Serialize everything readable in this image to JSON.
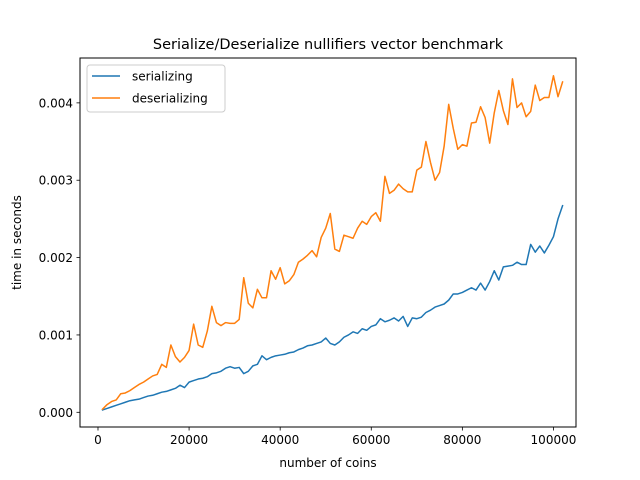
{
  "chart_data": {
    "type": "line",
    "title": "Serialize/Deserialize nullifiers vector benchmark",
    "xlabel": "number of coins",
    "ylabel": "time in seconds",
    "xlim": [
      -3950,
      104950
    ],
    "ylim": [
      -0.00019,
      0.00458
    ],
    "xticks": [
      0,
      20000,
      40000,
      60000,
      80000,
      100000
    ],
    "xtick_labels": [
      "0",
      "20000",
      "40000",
      "60000",
      "80000",
      "100000"
    ],
    "yticks": [
      0,
      0.001,
      0.002,
      0.003,
      0.004
    ],
    "ytick_labels": [
      "0.000",
      "0.001",
      "0.002",
      "0.003",
      "0.004"
    ],
    "grid": false,
    "legend": "upper left",
    "x_start": 1000,
    "x_step": 1000,
    "series": [
      {
        "name": "serializing",
        "color": "#1f77b4",
        "values": [
          3e-05,
          5e-05,
          7e-05,
          9e-05,
          0.00011,
          0.00013,
          0.00015,
          0.00016,
          0.00017,
          0.00019,
          0.00021,
          0.00022,
          0.00024,
          0.00026,
          0.00027,
          0.00029,
          0.00031,
          0.00035,
          0.00032,
          0.00039,
          0.00041,
          0.00043,
          0.00044,
          0.00046,
          0.0005,
          0.00051,
          0.00053,
          0.00057,
          0.00059,
          0.00057,
          0.00058,
          0.0005,
          0.00053,
          0.0006,
          0.00062,
          0.00073,
          0.00068,
          0.00071,
          0.00073,
          0.00074,
          0.00075,
          0.00077,
          0.00078,
          0.00081,
          0.00083,
          0.00086,
          0.00087,
          0.00089,
          0.00091,
          0.00096,
          0.00089,
          0.00087,
          0.00091,
          0.00097,
          0.001,
          0.00104,
          0.00102,
          0.00108,
          0.00106,
          0.00111,
          0.00113,
          0.00121,
          0.00117,
          0.00119,
          0.00122,
          0.00118,
          0.00124,
          0.00111,
          0.00122,
          0.00121,
          0.00123,
          0.00129,
          0.00132,
          0.00136,
          0.00138,
          0.0014,
          0.00145,
          0.00153,
          0.00153,
          0.00155,
          0.00158,
          0.00161,
          0.00158,
          0.00167,
          0.00158,
          0.00169,
          0.00183,
          0.00171,
          0.00188,
          0.00189,
          0.0019,
          0.00194,
          0.00191,
          0.00191,
          0.00217,
          0.00207,
          0.00215,
          0.00206,
          0.00216,
          0.00227,
          0.0025,
          0.00267
        ]
      },
      {
        "name": "deserializing",
        "color": "#ff7f0e",
        "values": [
          4e-05,
          0.0001,
          0.00014,
          0.00016,
          0.00024,
          0.00025,
          0.00028,
          0.00032,
          0.00036,
          0.00039,
          0.00043,
          0.00047,
          0.00049,
          0.00062,
          0.00058,
          0.00087,
          0.00072,
          0.00065,
          0.00071,
          0.0008,
          0.00114,
          0.00087,
          0.00084,
          0.00105,
          0.00137,
          0.00116,
          0.00112,
          0.00116,
          0.00115,
          0.00115,
          0.0012,
          0.00174,
          0.00141,
          0.00135,
          0.00159,
          0.00148,
          0.00148,
          0.00183,
          0.00172,
          0.00187,
          0.00166,
          0.0017,
          0.00178,
          0.00194,
          0.00198,
          0.00203,
          0.00209,
          0.00201,
          0.00226,
          0.00238,
          0.00257,
          0.00211,
          0.00208,
          0.00229,
          0.00227,
          0.00225,
          0.00238,
          0.00247,
          0.00243,
          0.00253,
          0.00258,
          0.00247,
          0.00305,
          0.00283,
          0.00287,
          0.00295,
          0.00289,
          0.00285,
          0.00285,
          0.00313,
          0.00317,
          0.0035,
          0.00323,
          0.003,
          0.0031,
          0.00344,
          0.00398,
          0.00367,
          0.0034,
          0.00346,
          0.00344,
          0.00374,
          0.00375,
          0.00395,
          0.00381,
          0.00348,
          0.00387,
          0.00416,
          0.0039,
          0.00372,
          0.00431,
          0.00394,
          0.004,
          0.00382,
          0.00389,
          0.00423,
          0.00403,
          0.00407,
          0.00407,
          0.00435,
          0.00408,
          0.00427
        ]
      }
    ]
  }
}
